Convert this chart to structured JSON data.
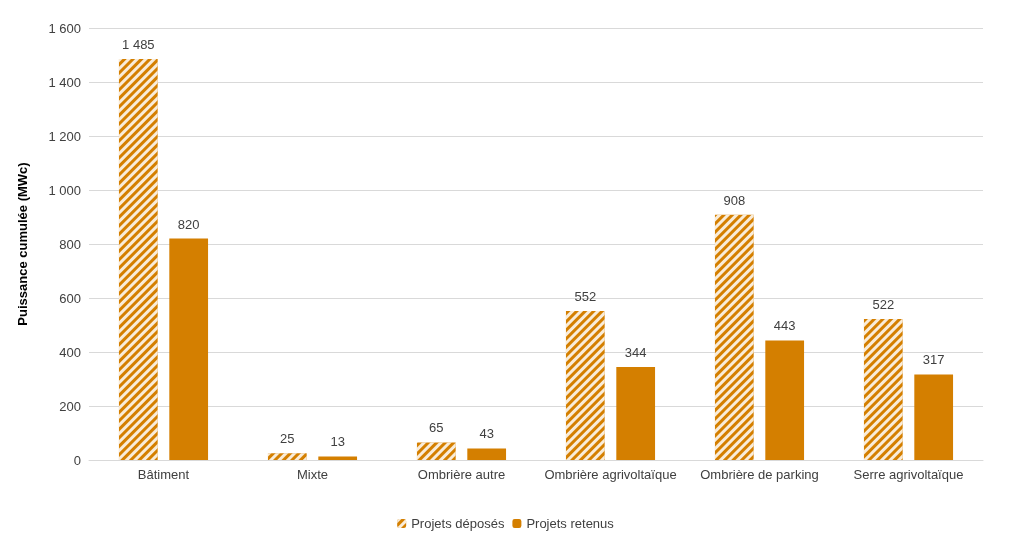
{
  "chart_data": {
    "type": "bar",
    "ylabel": "Puissance cumulée (MWc)",
    "categories": [
      "Bâtiment",
      "Mixte",
      "Ombrière autre",
      "Ombrière agrivoltaïque",
      "Ombrière de parking",
      "Serre agrivoltaïque"
    ],
    "series": [
      {
        "name": "Projets déposés",
        "color": "#d47f00",
        "values": [
          1485,
          25,
          65,
          552,
          908,
          522
        ],
        "value_labels": [
          "1 485",
          "25",
          "65",
          "552",
          "908",
          "522"
        ]
      },
      {
        "name": "Projets retenus",
        "color": "#d47f00",
        "values": [
          820,
          13,
          43,
          344,
          443,
          317
        ],
        "value_labels": [
          "820",
          "13",
          "43",
          "344",
          "443",
          "317"
        ]
      }
    ],
    "ylim": [
      0,
      1600
    ],
    "yticks": [
      0,
      200,
      400,
      600,
      800,
      {
        "value": 1000,
        "label": "1 000"
      },
      {
        "value": 1200,
        "label": "1 200"
      },
      {
        "value": 1400,
        "label": "1 400"
      },
      {
        "value": 1600,
        "label": "1 600"
      }
    ],
    "grid": "y",
    "legend": "bottom"
  }
}
